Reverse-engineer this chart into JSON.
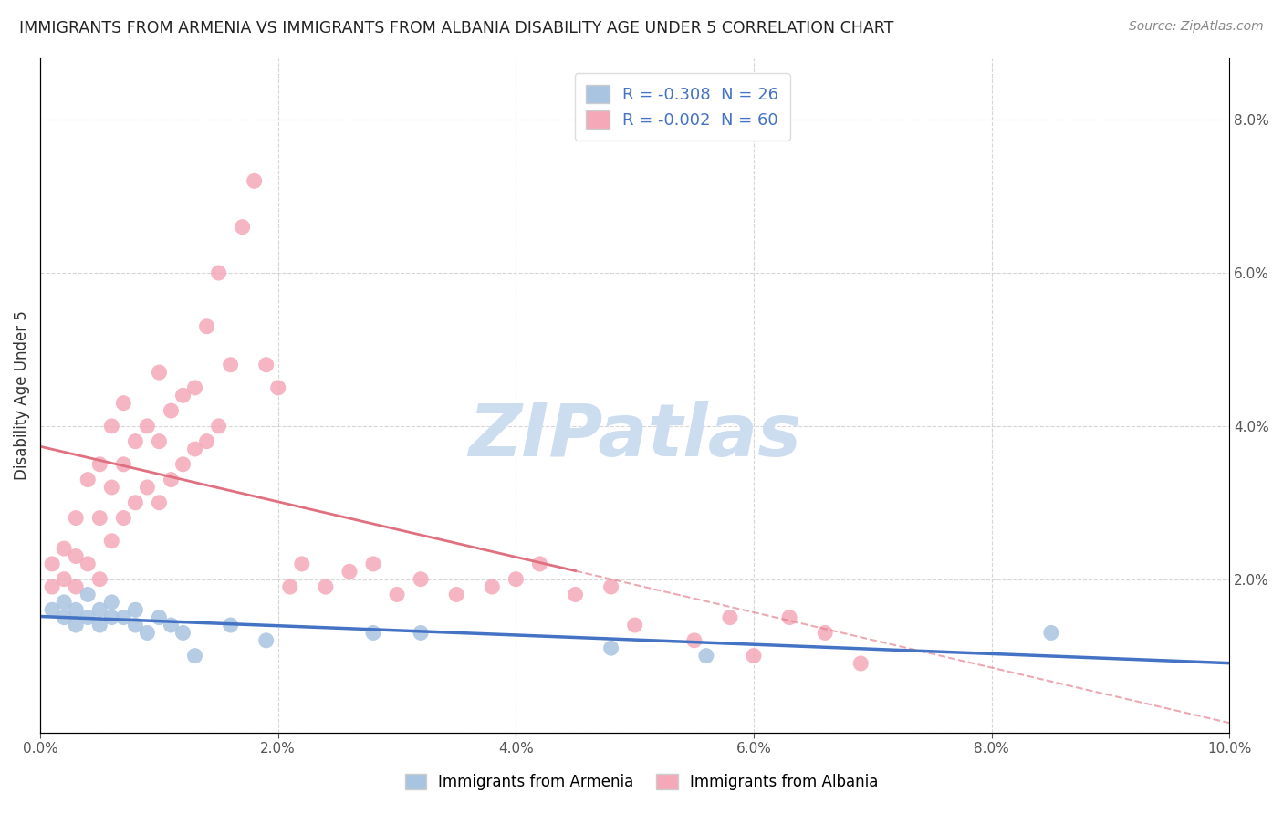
{
  "title": "IMMIGRANTS FROM ARMENIA VS IMMIGRANTS FROM ALBANIA DISABILITY AGE UNDER 5 CORRELATION CHART",
  "source": "Source: ZipAtlas.com",
  "ylabel": "Disability Age Under 5",
  "xlim": [
    0,
    0.1
  ],
  "ylim": [
    0,
    0.088
  ],
  "xticks": [
    0.0,
    0.02,
    0.04,
    0.06,
    0.08,
    0.1
  ],
  "yticks": [
    0.0,
    0.02,
    0.04,
    0.06,
    0.08
  ],
  "armenia_color": "#a8c4e0",
  "albania_color": "#f4a8b8",
  "armenia_line_color": "#4472c4",
  "albania_line_color": "#e07080",
  "legend_text_color": "#4472c4",
  "watermark": "ZIPatlas",
  "watermark_color": "#ccddf0",
  "armenia_R": -0.308,
  "armenia_N": 26,
  "albania_R": -0.002,
  "albania_N": 60,
  "armenia_scatter_x": [
    0.001,
    0.002,
    0.002,
    0.003,
    0.003,
    0.004,
    0.004,
    0.005,
    0.005,
    0.006,
    0.006,
    0.007,
    0.008,
    0.008,
    0.009,
    0.01,
    0.011,
    0.012,
    0.013,
    0.016,
    0.019,
    0.028,
    0.032,
    0.048,
    0.056,
    0.085
  ],
  "armenia_scatter_y": [
    0.016,
    0.015,
    0.017,
    0.014,
    0.016,
    0.015,
    0.018,
    0.014,
    0.016,
    0.015,
    0.017,
    0.015,
    0.014,
    0.016,
    0.013,
    0.015,
    0.014,
    0.013,
    0.01,
    0.014,
    0.012,
    0.013,
    0.013,
    0.011,
    0.01,
    0.013
  ],
  "albania_scatter_x": [
    0.001,
    0.001,
    0.002,
    0.002,
    0.003,
    0.003,
    0.003,
    0.004,
    0.004,
    0.005,
    0.005,
    0.005,
    0.006,
    0.006,
    0.006,
    0.007,
    0.007,
    0.007,
    0.008,
    0.008,
    0.009,
    0.009,
    0.01,
    0.01,
    0.01,
    0.011,
    0.011,
    0.012,
    0.012,
    0.013,
    0.013,
    0.014,
    0.014,
    0.015,
    0.015,
    0.016,
    0.017,
    0.018,
    0.019,
    0.02,
    0.021,
    0.022,
    0.024,
    0.026,
    0.028,
    0.03,
    0.032,
    0.035,
    0.038,
    0.04,
    0.042,
    0.045,
    0.048,
    0.05,
    0.055,
    0.058,
    0.06,
    0.063,
    0.066,
    0.069
  ],
  "albania_scatter_y": [
    0.019,
    0.022,
    0.02,
    0.024,
    0.019,
    0.023,
    0.028,
    0.022,
    0.033,
    0.02,
    0.028,
    0.035,
    0.025,
    0.032,
    0.04,
    0.028,
    0.035,
    0.043,
    0.03,
    0.038,
    0.032,
    0.04,
    0.03,
    0.038,
    0.047,
    0.033,
    0.042,
    0.035,
    0.044,
    0.037,
    0.045,
    0.038,
    0.053,
    0.04,
    0.06,
    0.048,
    0.066,
    0.072,
    0.048,
    0.045,
    0.019,
    0.022,
    0.019,
    0.021,
    0.022,
    0.018,
    0.02,
    0.018,
    0.019,
    0.02,
    0.022,
    0.018,
    0.019,
    0.014,
    0.012,
    0.015,
    0.01,
    0.015,
    0.013,
    0.009
  ]
}
